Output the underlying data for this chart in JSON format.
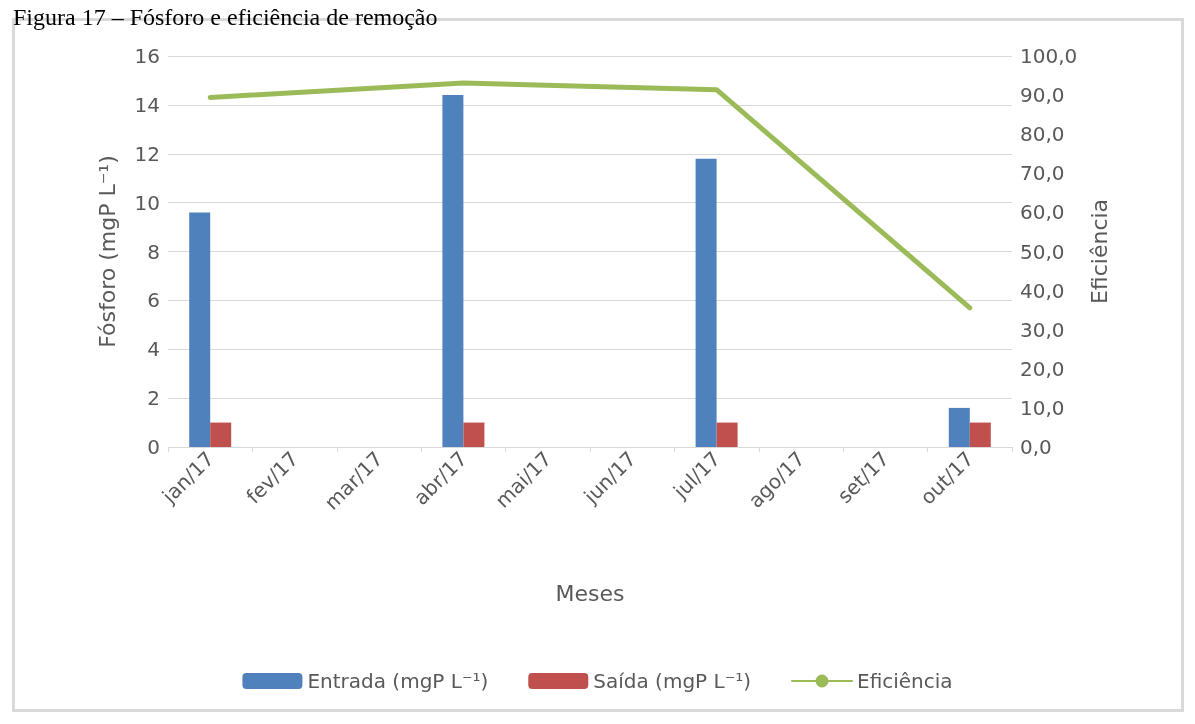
{
  "chart_data": {
    "type": "bar",
    "title": "Figura 17 – Fósforo e eficiência de remoção",
    "xlabel": "Meses",
    "ylabel": "Fósforo (mgP L⁻¹)",
    "y2label": "Eficiência",
    "categories": [
      "jan/17",
      "fev/17",
      "mar/17",
      "abr/17",
      "mai/17",
      "jun/17",
      "jul/17",
      "ago/17",
      "set/17",
      "out/17"
    ],
    "series": [
      {
        "name": "Entrada (mgP L⁻¹)",
        "color": "#4f81bd",
        "values": [
          9.6,
          null,
          null,
          14.4,
          null,
          null,
          11.8,
          null,
          null,
          1.6
        ]
      },
      {
        "name": "Saída (mgP L⁻¹)",
        "color": "#c0504d",
        "values": [
          1.0,
          null,
          null,
          1.0,
          null,
          null,
          1.0,
          null,
          null,
          1.0
        ]
      },
      {
        "name": "Eficiência",
        "type": "line",
        "axis": "y2",
        "color": "#9bbb59",
        "values": [
          89.4,
          null,
          null,
          93.1,
          null,
          null,
          91.4,
          null,
          null,
          35.6
        ]
      }
    ],
    "ylim": [
      0,
      16
    ],
    "yticks": [
      0,
      2,
      4,
      6,
      8,
      10,
      12,
      14,
      16
    ],
    "y2lim": [
      0,
      100
    ],
    "y2ticks": [
      {
        "value": 0,
        "label": "0,0"
      },
      {
        "value": 10,
        "label": "10,0"
      },
      {
        "value": 20,
        "label": "20,0"
      },
      {
        "value": 30,
        "label": "30,0"
      },
      {
        "value": 40,
        "label": "40,0"
      },
      {
        "value": 50,
        "label": "50,0"
      },
      {
        "value": 60,
        "label": "60,0"
      },
      {
        "value": 70,
        "label": "70,0"
      },
      {
        "value": 80,
        "label": "80,0"
      },
      {
        "value": 90,
        "label": "90,0"
      },
      {
        "value": 100,
        "label": "100,0"
      }
    ],
    "grid": "y",
    "legend": "bottom",
    "marker": "none",
    "line_style": "solid"
  }
}
